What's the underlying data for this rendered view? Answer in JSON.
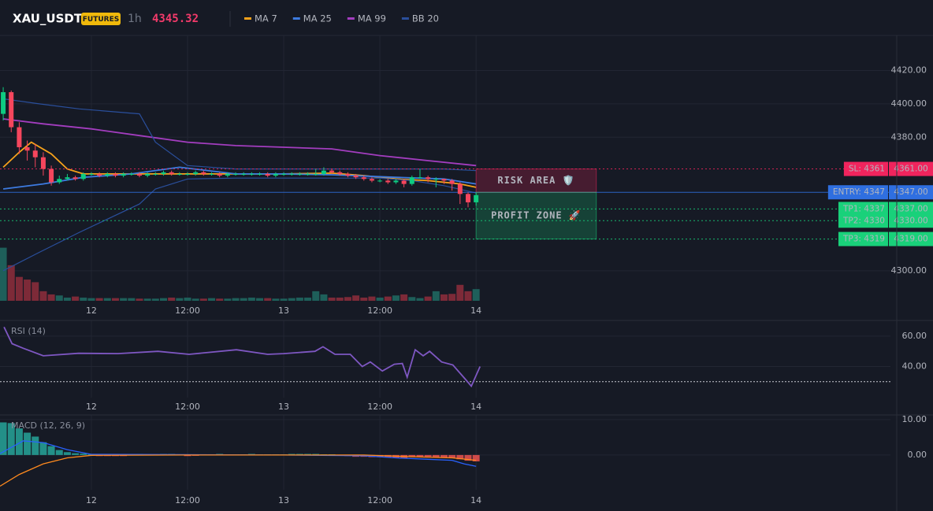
{
  "header": {
    "symbol": "XAU_USDT",
    "badge": "FUTURES",
    "interval": "1h",
    "price": 4345.32
  },
  "chart_data": [
    {
      "type": "candlestick",
      "x": [
        -11,
        -10,
        -9,
        -8,
        -7,
        -6,
        -5,
        -4,
        -3,
        -2,
        -1,
        0,
        1,
        2,
        3,
        4,
        5,
        6,
        7,
        8,
        9,
        10,
        11,
        12,
        13,
        14,
        15,
        16,
        17,
        18,
        19,
        20,
        21,
        22,
        23,
        24,
        25,
        26,
        27,
        28,
        29,
        30,
        31,
        32,
        33,
        34,
        35,
        36,
        37,
        38,
        39,
        40,
        41,
        42,
        43,
        44,
        45,
        46,
        47,
        48
      ],
      "open": [
        4394,
        4407,
        4386,
        4374,
        4372,
        4368,
        4361,
        4353,
        4355,
        4356,
        4355,
        4358,
        4358,
        4357,
        4358,
        4357,
        4358,
        4358,
        4357,
        4358,
        4358,
        4359,
        4358,
        4358,
        4358,
        4359,
        4358,
        4358,
        4357,
        4358,
        4358,
        4358,
        4358,
        4358,
        4357,
        4358,
        4358,
        4358,
        4358,
        4358,
        4358,
        4360,
        4359,
        4358,
        4357,
        4356,
        4355,
        4354,
        4354,
        4353,
        4354,
        4352,
        4356,
        4356,
        4355,
        4355,
        4354,
        4352,
        4346,
        4341
      ],
      "high": [
        4410,
        4408,
        4389,
        4378,
        4376,
        4371,
        4363,
        4357,
        4358,
        4357,
        4359,
        4359,
        4359,
        4359,
        4359,
        4359,
        4359,
        4359,
        4359,
        4359,
        4360,
        4360,
        4359,
        4359,
        4360,
        4360,
        4359,
        4359,
        4359,
        4359,
        4359,
        4359,
        4359,
        4359,
        4359,
        4359,
        4359,
        4359,
        4359,
        4361,
        4362,
        4361,
        4360,
        4359,
        4358,
        4357,
        4356,
        4355,
        4355,
        4355,
        4355,
        4357,
        4361,
        4357,
        4356,
        4355,
        4355,
        4353,
        4347,
        4347
      ],
      "low": [
        4390,
        4383,
        4370,
        4366,
        4362,
        4357,
        4351,
        4352,
        4354,
        4354,
        4354,
        4357,
        4356,
        4356,
        4356,
        4356,
        4357,
        4356,
        4356,
        4357,
        4357,
        4357,
        4357,
        4357,
        4357,
        4357,
        4357,
        4356,
        4356,
        4357,
        4357,
        4357,
        4357,
        4356,
        4356,
        4357,
        4357,
        4357,
        4357,
        4357,
        4357,
        4358,
        4357,
        4356,
        4355,
        4354,
        4353,
        4353,
        4352,
        4352,
        4350,
        4351,
        4355,
        4353,
        4350,
        4352,
        4348,
        4340,
        4338,
        4339
      ],
      "close": [
        4407,
        4386,
        4374,
        4372,
        4368,
        4361,
        4353,
        4355,
        4356,
        4355,
        4358,
        4358,
        4357,
        4358,
        4357,
        4358,
        4358,
        4357,
        4358,
        4358,
        4359,
        4358,
        4358,
        4358,
        4359,
        4358,
        4358,
        4357,
        4358,
        4358,
        4358,
        4358,
        4358,
        4357,
        4358,
        4358,
        4358,
        4358,
        4358,
        4358,
        4360,
        4359,
        4358,
        4357,
        4356,
        4355,
        4354,
        4354,
        4353,
        4354,
        4352,
        4356,
        4356,
        4355,
        4355,
        4354,
        4352,
        4346,
        4341,
        4345.32
      ],
      "volume": [
        100,
        67,
        45,
        40,
        35,
        18,
        12,
        10,
        6,
        8,
        6,
        5,
        5,
        5,
        5,
        5,
        5,
        4,
        4,
        4,
        5,
        6,
        5,
        6,
        4,
        4,
        5,
        4,
        4,
        5,
        5,
        6,
        5,
        5,
        4,
        4,
        5,
        6,
        6,
        18,
        12,
        6,
        6,
        7,
        10,
        6,
        8,
        6,
        8,
        10,
        12,
        7,
        5,
        8,
        18,
        12,
        13,
        30,
        18,
        22
      ],
      "volume_ylim": [
        0,
        100
      ],
      "up_color": "#0ecb81",
      "down_color": "#f6465d",
      "volume_up_color": "#1e5f5a",
      "volume_down_color": "#7d2a38",
      "series": [
        {
          "name": "MA 7",
          "color": "#f7a21b",
          "x": [
            -11,
            -9,
            -7.5,
            -5,
            -3,
            -1,
            6,
            12,
            18,
            24,
            30,
            34,
            38,
            42,
            46,
            48
          ],
          "values": [
            4362,
            4371,
            4377,
            4370,
            4361,
            4358,
            4358,
            4358,
            4358,
            4358,
            4358.5,
            4357,
            4355,
            4354,
            4352,
            4350
          ]
        },
        {
          "name": "MA 25",
          "color": "#3d7be0",
          "x": [
            -11,
            -6,
            -1,
            5,
            11,
            18,
            24,
            30,
            38,
            44,
            48
          ],
          "values": [
            4349,
            4352,
            4356,
            4358,
            4362,
            4358,
            4358,
            4357.5,
            4356,
            4355,
            4352
          ]
        },
        {
          "name": "MA 99",
          "color": "#a33dbf",
          "x": [
            -11,
            -6,
            0,
            6,
            12,
            18,
            24,
            30,
            36,
            42,
            48
          ],
          "values": [
            4391,
            4388,
            4385,
            4381,
            4377,
            4375,
            4374,
            4373,
            4369,
            4366,
            4363
          ]
        },
        {
          "name": "BB 20",
          "color": "#2a4f9c",
          "x": [
            -11,
            -6.5,
            -1.5,
            6,
            8,
            12,
            18,
            24,
            30,
            36,
            40,
            44,
            48
          ],
          "upper": [
            4403,
            4400,
            4397,
            4394,
            4377,
            4363,
            4361,
            4361,
            4361,
            4361,
            4361,
            4361,
            4360
          ],
          "lower": [
            4300,
            4311,
            4323,
            4340,
            4349,
            4355,
            4355.5,
            4355.5,
            4355.5,
            4355.5,
            4354,
            4351,
            4346.6
          ]
        }
      ],
      "levels": [
        {
          "name": "SL: 4361",
          "value": 4361,
          "value_label": "4361.00",
          "color": "#f0245d",
          "text_color": "#ffffff",
          "style": "dotted"
        },
        {
          "name": "ENTRY: 4347",
          "value": 4347,
          "value_label": "4347.00",
          "color": "#2f6fe0",
          "text_color": "#ffffff",
          "style": "solid"
        },
        {
          "name": "TP1: 4337",
          "value": 4337,
          "value_label": "4337.00",
          "color": "#19d17a",
          "text_color": "#0b1a12",
          "style": "dotted"
        },
        {
          "name": "TP2: 4330",
          "value": 4330,
          "value_label": "4330.00",
          "color": "#19d17a",
          "text_color": "#0b1a12",
          "style": "dotted"
        },
        {
          "name": "TP3: 4319",
          "value": 4319,
          "value_label": "4319.00",
          "color": "#19d17a",
          "text_color": "#0b1a12",
          "style": "dotted"
        }
      ],
      "zones": [
        {
          "label": "RISK AREA 🛡️",
          "from": 4361,
          "to": 4347,
          "x": [
            48,
            63
          ],
          "color": "#f0245d"
        },
        {
          "label": "PROFIT ZONE 🚀",
          "from": 4347,
          "to": 4319,
          "x": [
            48,
            63
          ],
          "color": "#19d17a"
        }
      ],
      "xlim": [
        -11.4,
        99.7
      ],
      "ylim": [
        4282,
        4441
      ],
      "xticks": [
        {
          "value": 0,
          "label": "12"
        },
        {
          "value": 12,
          "label": "12:00"
        },
        {
          "value": 24,
          "label": "13"
        },
        {
          "value": 36,
          "label": "12:00"
        },
        {
          "value": 48,
          "label": "14"
        }
      ],
      "yticks": [
        {
          "value": 4300,
          "label": "4300.00"
        },
        {
          "value": 4380,
          "label": "4380.00"
        },
        {
          "value": 4400,
          "label": "4400.00"
        },
        {
          "value": 4420,
          "label": "4420.00"
        }
      ],
      "grid": true
    },
    {
      "type": "line",
      "title": "RSI (14)",
      "series": [
        {
          "color": "#7e57c2",
          "x": [
            -10.9,
            -9.9,
            -8.5,
            -6,
            -1.6,
            3.3,
            8.3,
            12.2,
            18.1,
            22,
            24,
            27.9,
            28.9,
            30.4,
            32.3,
            33.8,
            34.8,
            36.3,
            37.8,
            38.8,
            39.4,
            40.4,
            41.4,
            42.2,
            43.7,
            45.1,
            46.6,
            47.4,
            48.5
          ],
          "values": [
            66,
            55,
            52,
            47,
            48.7,
            48.5,
            50,
            48,
            51,
            48,
            48.5,
            50,
            53,
            48,
            48,
            40,
            43,
            37,
            41.5,
            42,
            33,
            51,
            47,
            50,
            43,
            41,
            32,
            27,
            40
          ]
        }
      ],
      "reference_lines": [
        30
      ],
      "xlim": [
        -11.4,
        99.7
      ],
      "ylim": [
        19.5,
        70.3
      ],
      "xticks": [
        {
          "value": 0,
          "label": "12"
        },
        {
          "value": 12,
          "label": "12:00"
        },
        {
          "value": 24,
          "label": "13"
        },
        {
          "value": 36,
          "label": "12:00"
        },
        {
          "value": 48,
          "label": "14"
        }
      ],
      "yticks": [
        {
          "value": 40,
          "label": "40.00"
        },
        {
          "value": 60,
          "label": "60.00"
        }
      ],
      "grid": true
    },
    {
      "type": "macd",
      "title": "MACD (12, 26, 9)",
      "histogram": {
        "x": [
          -11,
          -10,
          -9,
          -8,
          -7,
          -6,
          -5,
          -4,
          -3,
          -2,
          -1,
          0,
          1,
          2,
          3,
          4,
          5,
          6,
          7,
          8,
          9,
          10,
          11,
          12,
          13,
          14,
          15,
          16,
          17,
          18,
          19,
          20,
          21,
          22,
          23,
          24,
          25,
          26,
          27,
          28,
          29,
          30,
          31,
          32,
          33,
          34,
          35,
          36,
          37,
          38,
          39,
          40,
          41,
          42,
          43,
          44,
          45,
          46,
          47,
          48
        ],
        "values": [
          9.2,
          9.0,
          7.5,
          6.3,
          5.2,
          3.6,
          2.5,
          1.4,
          0.8,
          0.5,
          0.4,
          0.3,
          -0.3,
          -0.3,
          -0.3,
          -0.3,
          0.3,
          0.3,
          0.2,
          0.2,
          0.3,
          0.3,
          0.2,
          -0.3,
          -0.2,
          0.2,
          0.2,
          0.3,
          0.2,
          0.2,
          0.2,
          0.3,
          0.2,
          0.2,
          0.2,
          0.2,
          0.3,
          0.3,
          0.3,
          0.3,
          0.2,
          0.2,
          -0.2,
          -0.3,
          -0.5,
          -0.5,
          -0.6,
          -0.6,
          -0.7,
          -0.7,
          -0.8,
          -0.6,
          -0.5,
          -0.5,
          -0.6,
          -0.8,
          -0.9,
          -1.2,
          -1.6,
          -1.8
        ],
        "up_color": "#26a69a",
        "down_color": "#ef5350"
      },
      "series": [
        {
          "color": "#2962ff",
          "x": [
            -11.4,
            -8.5,
            -6,
            -3,
            0,
            12,
            24,
            34,
            38,
            42,
            45,
            46.5,
            48
          ],
          "values": [
            0.4,
            4,
            3.5,
            1.5,
            0.2,
            0.1,
            0,
            -0.2,
            -0.8,
            -1.2,
            -1.5,
            -2.5,
            -3.2
          ]
        },
        {
          "color": "#ff8a1e",
          "x": [
            -11.4,
            -9,
            -6,
            -3,
            0,
            12,
            24,
            34,
            40,
            45,
            48
          ],
          "values": [
            -8.8,
            -5.5,
            -2.5,
            -0.8,
            -0.1,
            0,
            0,
            0,
            -0.5,
            -0.8,
            -1.5
          ]
        }
      ],
      "xlim": [
        -11.4,
        99.7
      ],
      "ylim": [
        -9.8,
        11.3
      ],
      "xticks": [
        {
          "value": 0,
          "label": "12"
        },
        {
          "value": 12,
          "label": "12:00"
        },
        {
          "value": 24,
          "label": "13"
        },
        {
          "value": 36,
          "label": "12:00"
        },
        {
          "value": 48,
          "label": "14"
        }
      ],
      "yticks": [
        {
          "value": 0,
          "label": "0.00"
        },
        {
          "value": 10,
          "label": "10.00"
        }
      ],
      "grid": true
    }
  ]
}
